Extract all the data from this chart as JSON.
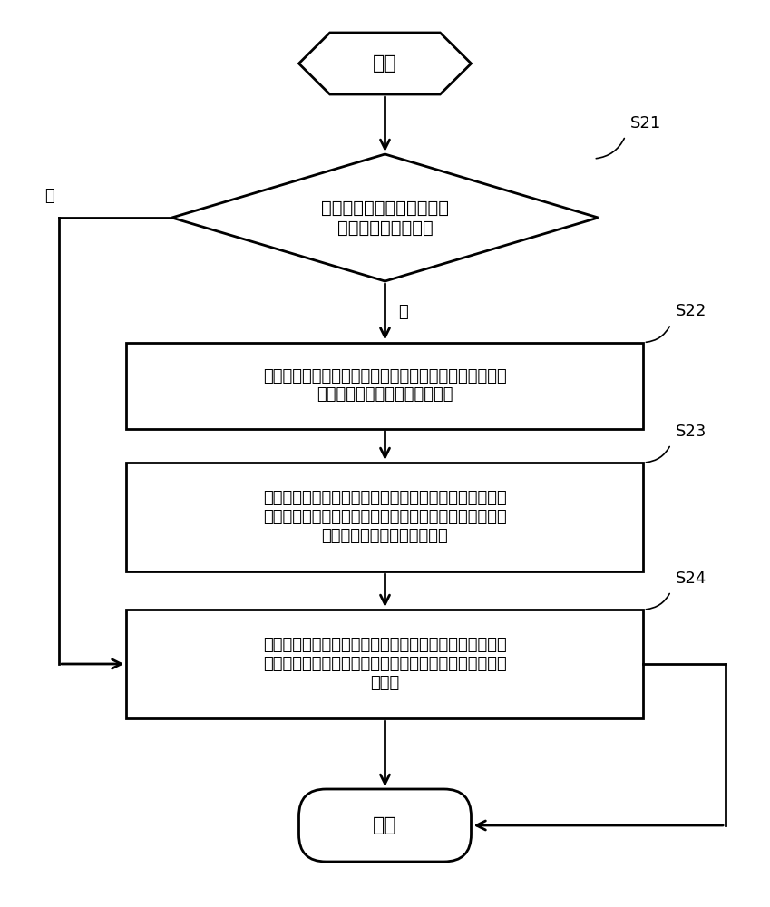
{
  "bg_color": "#ffffff",
  "border_color": "#000000",
  "text_color": "#000000",
  "line_color": "#000000",
  "start_text": "开始",
  "end_text": "结束",
  "diamond_text": "所述入侵侵测单元侵测所述\n防护壳体是否被入侵",
  "diamond_label": "S21",
  "box1_text": "当所述入侵侵测单元侵测到所述防护壳体被入侵时，产生\n一入侵信号至所述安全管理芯片",
  "box1_label": "S22",
  "box2_text": "当所述安全管理芯片接收到所述入侵信号时，控制产生警\n告信号，所述安全管理芯片根据所述入侵信号切断显示信\n号的传输并记录所述入侵事件",
  "box2_label": "S23",
  "box3_text": "当所述入侵侵测单元侵测到所述防护壳体没被入侵时，根\n据一内容源控制输出的显示信号控制所述显示屏播放所述\n内容源",
  "box3_label": "S24",
  "no_label": "否",
  "yes_label": "是"
}
